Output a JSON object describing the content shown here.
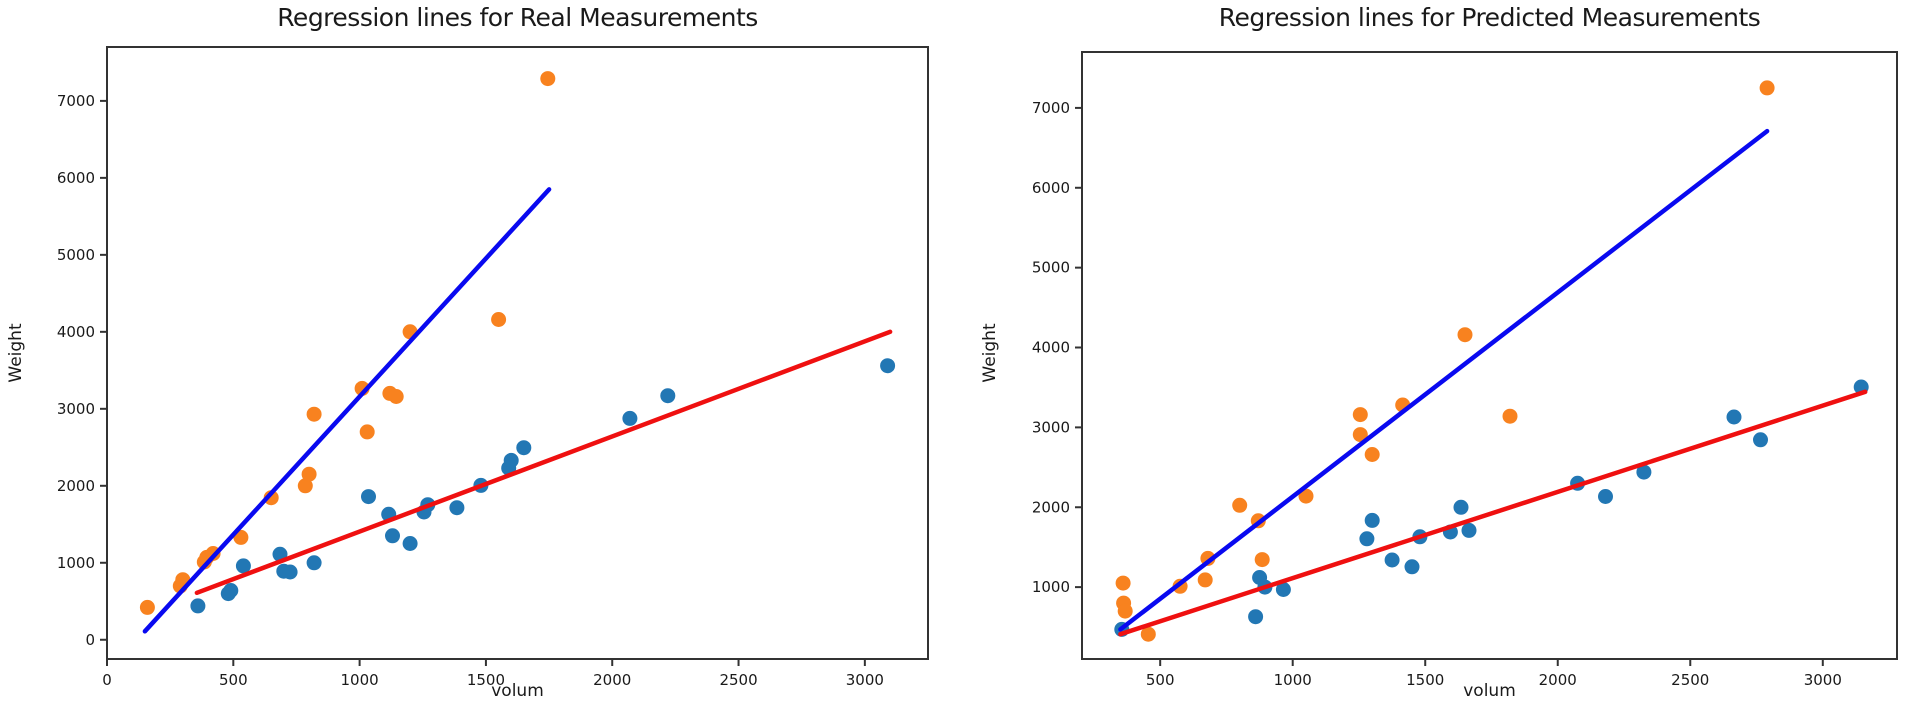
{
  "page": {
    "background": "#ffffff"
  },
  "colors": {
    "scatter_orange": "#f8821f",
    "scatter_blue": "#2277b4",
    "regression_blue": "#0909f0",
    "regression_red": "#ef1010",
    "axis": "#333333",
    "tick_label": "#1a1a1a"
  },
  "chart_data": [
    {
      "type": "scatter",
      "title": "Regression lines for Real Measurements",
      "xlabel": "volum",
      "ylabel": "Weight",
      "xlim": [
        0,
        3250
      ],
      "ylim": [
        -250,
        7700
      ],
      "xticks": [
        0,
        500,
        1000,
        1500,
        2000,
        2500,
        3000
      ],
      "yticks": [
        0,
        1000,
        2000,
        3000,
        4000,
        5000,
        6000,
        7000
      ],
      "grid": false,
      "legend": "none",
      "series": [
        {
          "name": "orange-measurements",
          "color": "#f8821f",
          "points": [
            [
              160,
              420
            ],
            [
              290,
              700
            ],
            [
              300,
              780
            ],
            [
              385,
              1010
            ],
            [
              395,
              1070
            ],
            [
              420,
              1120
            ],
            [
              530,
              1330
            ],
            [
              650,
              1845
            ],
            [
              785,
              2000
            ],
            [
              800,
              2150
            ],
            [
              820,
              2930
            ],
            [
              1010,
              3265
            ],
            [
              1030,
              2700
            ],
            [
              1120,
              3200
            ],
            [
              1145,
              3160
            ],
            [
              1200,
              4000
            ],
            [
              1550,
              4160
            ],
            [
              1745,
              7290
            ]
          ]
        },
        {
          "name": "blue-measurements",
          "color": "#2277b4",
          "points": [
            [
              360,
              440
            ],
            [
              480,
              600
            ],
            [
              490,
              640
            ],
            [
              540,
              960
            ],
            [
              685,
              1110
            ],
            [
              700,
              890
            ],
            [
              725,
              880
            ],
            [
              820,
              1000
            ],
            [
              1035,
              1860
            ],
            [
              1115,
              1630
            ],
            [
              1130,
              1350
            ],
            [
              1200,
              1250
            ],
            [
              1255,
              1660
            ],
            [
              1270,
              1755
            ],
            [
              1385,
              1715
            ],
            [
              1480,
              2005
            ],
            [
              1590,
              2230
            ],
            [
              1600,
              2330
            ],
            [
              1650,
              2495
            ],
            [
              2070,
              2875
            ],
            [
              2220,
              3170
            ],
            [
              3090,
              3560
            ]
          ]
        }
      ],
      "lines": [
        {
          "name": "blue-regression-line",
          "color": "#0909f0",
          "from": [
            150,
            110
          ],
          "to": [
            1750,
            5850
          ]
        },
        {
          "name": "red-regression-line",
          "color": "#ef1010",
          "from": [
            356,
            610
          ],
          "to": [
            3100,
            4000
          ]
        }
      ]
    },
    {
      "type": "scatter",
      "title": "Regression lines for Predicted Measurements",
      "xlabel": "volum",
      "ylabel": "Weight",
      "xlim": [
        205,
        3280
      ],
      "ylim": [
        100,
        7700
      ],
      "xticks": [
        500,
        1000,
        1500,
        2000,
        2500,
        3000
      ],
      "yticks": [
        1000,
        2000,
        3000,
        4000,
        5000,
        6000,
        7000
      ],
      "grid": false,
      "legend": "none",
      "series": [
        {
          "name": "orange-measurements",
          "color": "#f8821f",
          "points": [
            [
              360,
              1050
            ],
            [
              362,
              800
            ],
            [
              368,
              700
            ],
            [
              455,
              410
            ],
            [
              575,
              1010
            ],
            [
              670,
              1090
            ],
            [
              680,
              1360
            ],
            [
              800,
              2025
            ],
            [
              870,
              1830
            ],
            [
              885,
              1345
            ],
            [
              1050,
              2140
            ],
            [
              1255,
              3160
            ],
            [
              1255,
              2910
            ],
            [
              1300,
              2660
            ],
            [
              1415,
              3280
            ],
            [
              1650,
              4160
            ],
            [
              1820,
              3140
            ],
            [
              2790,
              7250
            ]
          ]
        },
        {
          "name": "blue-measurements",
          "color": "#2277b4",
          "points": [
            [
              355,
              470
            ],
            [
              860,
              630
            ],
            [
              875,
              1120
            ],
            [
              895,
              1000
            ],
            [
              965,
              970
            ],
            [
              1280,
              1605
            ],
            [
              1300,
              1835
            ],
            [
              1375,
              1340
            ],
            [
              1450,
              1255
            ],
            [
              1480,
              1630
            ],
            [
              1595,
              1690
            ],
            [
              1635,
              2000
            ],
            [
              1665,
              1710
            ],
            [
              2075,
              2300
            ],
            [
              2180,
              2135
            ],
            [
              2325,
              2440
            ],
            [
              2665,
              3130
            ],
            [
              2765,
              2845
            ],
            [
              3145,
              3505
            ]
          ]
        }
      ],
      "lines": [
        {
          "name": "blue-regression-line",
          "color": "#0909f0",
          "from": [
            350,
            470
          ],
          "to": [
            2790,
            6710
          ]
        },
        {
          "name": "red-regression-line",
          "color": "#ef1010",
          "from": [
            350,
            410
          ],
          "to": [
            3160,
            3445
          ]
        }
      ]
    }
  ]
}
